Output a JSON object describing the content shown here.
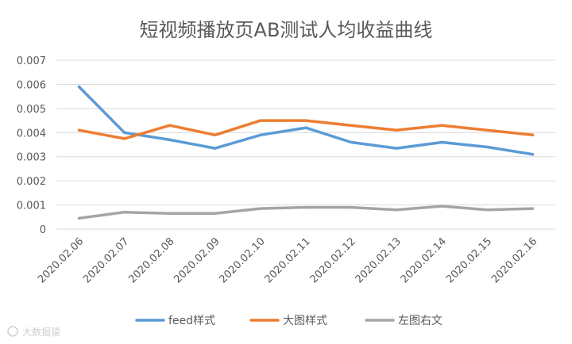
{
  "chart_data": {
    "type": "line",
    "title": "短视频播放页AB测试人均收益曲线",
    "xlabel": "",
    "ylabel": "",
    "ylim": [
      0,
      0.007
    ],
    "yticks": [
      "0",
      "0.001",
      "0.002",
      "0.003",
      "0.004",
      "0.005",
      "0.006",
      "0.007"
    ],
    "grid": true,
    "legend": "bottom",
    "categories": [
      "2020.02.06",
      "2020.02.07",
      "2020.02.08",
      "2020.02.09",
      "2020.02.10",
      "2020.02.11",
      "2020.02.12",
      "2020.02.13",
      "2020.02.14",
      "2020.02.15",
      "2020.02.16"
    ],
    "series": [
      {
        "name": "feed样式",
        "color": "#5b9bd5",
        "values": [
          0.0059,
          0.004,
          0.0037,
          0.00335,
          0.0039,
          0.0042,
          0.0036,
          0.00335,
          0.0036,
          0.0034,
          0.0031
        ]
      },
      {
        "name": "大图样式",
        "color": "#ed7d31",
        "values": [
          0.0041,
          0.00375,
          0.0043,
          0.0039,
          0.0045,
          0.0045,
          0.0043,
          0.0041,
          0.0043,
          0.0041,
          0.0039
        ]
      },
      {
        "name": "左图右文",
        "color": "#a5a5a5",
        "values": [
          0.00045,
          0.0007,
          0.00065,
          0.00065,
          0.00085,
          0.0009,
          0.0009,
          0.0008,
          0.00095,
          0.0008,
          0.00085
        ]
      }
    ]
  },
  "watermark": "大数据猿"
}
